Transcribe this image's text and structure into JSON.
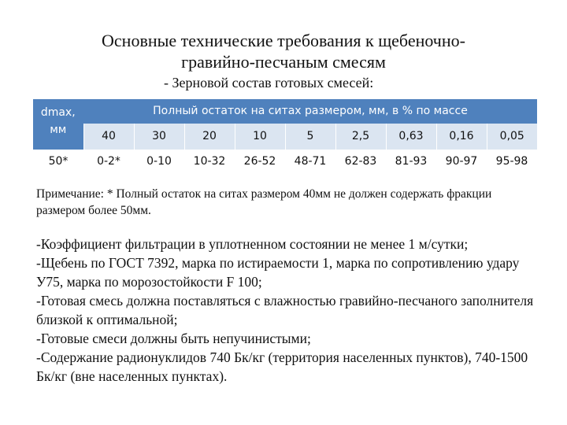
{
  "slide": {
    "title_line1": "Основные технические требования к щебеночно-",
    "title_line2": "гравийно-песчаным смесям",
    "subtitle": "- Зерновой состав готовых смесей:"
  },
  "table": {
    "header_left_line1": "dmax,",
    "header_left_line2": "мм",
    "header_top": "Полный остаток на ситах размером, мм, в % по массе",
    "sieve_sizes": [
      "40",
      "30",
      "20",
      "10",
      "5",
      "2,5",
      "0,63",
      "0,16",
      "0,05"
    ],
    "row_label": "50*",
    "row_values": [
      "0-2*",
      "0-10",
      "10-32",
      "26-52",
      "48-71",
      "62-83",
      "81-93",
      "90-97",
      "95-98"
    ]
  },
  "note": "Примечание: * Полный остаток на ситах размером 40мм не должен содержать фракции размером более 50мм.",
  "requirements": [
    "-Коэффициент фильтрации в уплотненном состоянии не менее 1 м/сутки;",
    "-Щебень по ГОСТ 7392, марка по истираемости 1, марка по сопротивлению удару У75, марка по морозостойкости F 100;",
    "-Готовая смесь должна поставляться с влажностью гравийно-песчаного заполнителя близкой к оптимальной;",
    "-Готовые смеси должны быть непучинистыми;",
    "-Содержание радионуклидов 740 Бк/кг (территория населенных пунктов), 740-1500 Бк/кг (вне населенных пунктах)."
  ],
  "colors": {
    "header_bg": "#4f81bd",
    "subheader_bg": "#dbe5f1"
  }
}
